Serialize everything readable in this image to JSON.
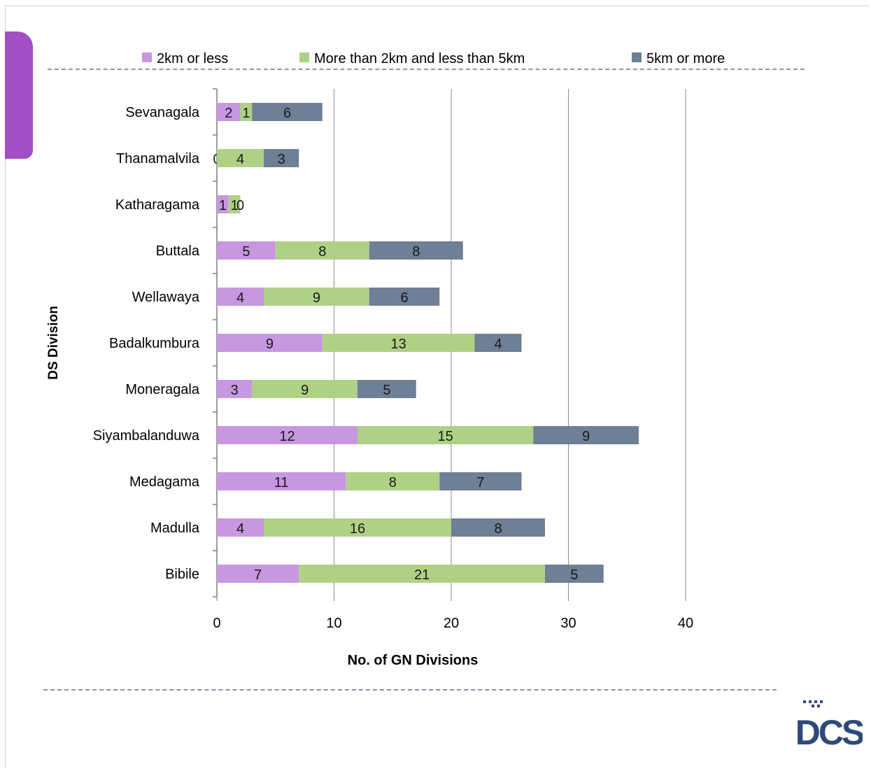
{
  "colors": {
    "s1": "#c797e0",
    "s2": "#afd185",
    "s3": "#6e7f96",
    "tab": "#a24fc6",
    "logo": "#2f4a7a"
  },
  "logo": {
    "text": "DCS"
  },
  "chart_data": {
    "type": "bar",
    "orientation": "horizontal",
    "stacked": true,
    "xlabel": "No.  of GN Divisions",
    "ylabel": "DS Division",
    "xlim": [
      0,
      40
    ],
    "xticks": [
      0,
      10,
      20,
      30,
      40
    ],
    "grid": true,
    "legend": "top",
    "categories": [
      "Sevanagala",
      "Thanamalvila",
      "Katharagama",
      "Buttala",
      "Wellawaya",
      "Badalkumbura",
      "Moneragala",
      "Siyambalanduwa",
      "Medagama",
      "Madulla",
      "Bibile"
    ],
    "series": [
      {
        "name": "2km or less",
        "values": [
          2,
          0,
          1,
          5,
          4,
          9,
          3,
          12,
          11,
          4,
          7
        ]
      },
      {
        "name": "More than 2km and  less than 5km",
        "values": [
          1,
          4,
          1,
          8,
          9,
          13,
          9,
          15,
          8,
          16,
          21
        ]
      },
      {
        "name": "5km or more",
        "values": [
          6,
          3,
          0,
          8,
          6,
          4,
          5,
          9,
          7,
          8,
          5
        ]
      }
    ]
  }
}
